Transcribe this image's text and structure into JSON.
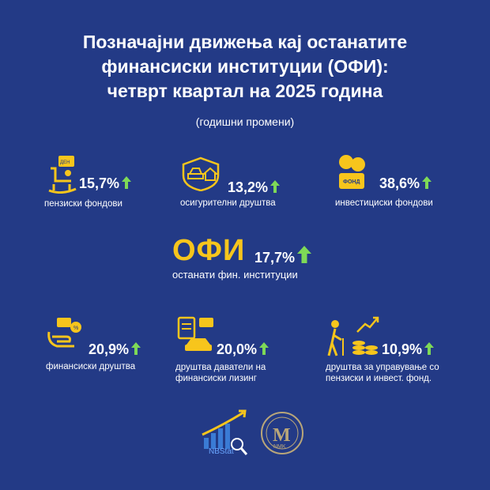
{
  "title_lines": [
    "Позначајни движења кај останатите",
    "финансиски институции (ОФИ):",
    "четврт квартал на 2025 година"
  ],
  "subtitle": "(годишни промени)",
  "colors": {
    "background": "#233a86",
    "accent_yellow": "#f7c51c",
    "arrow_green": "#7ed957"
  },
  "items": [
    {
      "value": "15,7%",
      "label": "пензиски фондови",
      "icon": "rocking-chair-icon",
      "direction": "up"
    },
    {
      "value": "13,2%",
      "label": "осигурителни друштва",
      "icon": "insurance-car-house-icon",
      "direction": "up"
    },
    {
      "value": "38,6%",
      "label": "инвестициски фондови",
      "icon": "coin-jar-icon",
      "direction": "up"
    },
    {
      "value": "20,9%",
      "label": "финансиски друштва",
      "icon": "hand-money-icon",
      "direction": "up"
    },
    {
      "value": "20,0%",
      "label_lines": [
        "друштва даватели на",
        "финансиски лизинг"
      ],
      "icon": "car-leasing-icon",
      "direction": "up"
    },
    {
      "value": "10,9%",
      "label_lines": [
        "друштва за управување со",
        "пензиски и инвест. фонд."
      ],
      "icon": "elderly-coins-icon",
      "direction": "up"
    }
  ],
  "ofi": {
    "abbr": "ОФИ",
    "value": "17,7%",
    "label": "останати фин. институции",
    "direction": "up"
  },
  "logos": {
    "nbstat_text": "NBStat",
    "seal_text": "NMK"
  }
}
